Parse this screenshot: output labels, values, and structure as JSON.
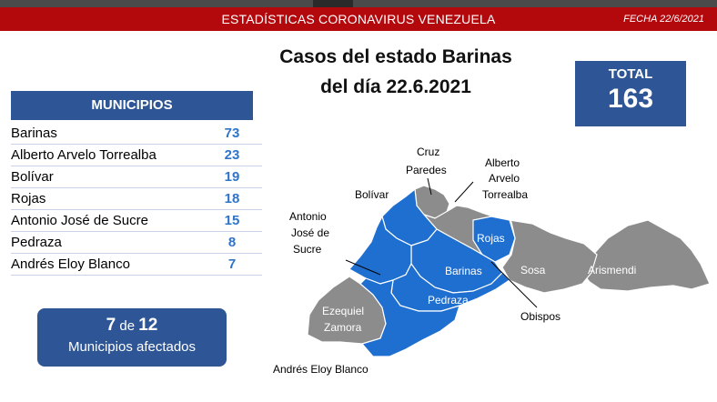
{
  "header": {
    "title": "ESTADÍSTICAS CORONAVIRUS VENEZUELA",
    "date": "FECHA 22/6/2021"
  },
  "headline": {
    "line1": "Casos del estado Barinas",
    "line2": "del día 22.6.2021"
  },
  "total": {
    "label": "TOTAL",
    "value": "163"
  },
  "municipios_table": {
    "header": "MUNICIPIOS",
    "rows": [
      {
        "name": "Barinas",
        "value": "73"
      },
      {
        "name": "Alberto Arvelo Torrealba",
        "value": "23"
      },
      {
        "name": "Bolívar",
        "value": "19"
      },
      {
        "name": "Rojas",
        "value": "18"
      },
      {
        "name": "Antonio José de Sucre",
        "value": "15"
      },
      {
        "name": "Pedraza",
        "value": "8"
      },
      {
        "name": "Andrés Eloy Blanco",
        "value": "7"
      }
    ]
  },
  "affected": {
    "count": "7",
    "of": "de",
    "total": "12",
    "label": "Municipios afectados"
  },
  "map": {
    "affected_color": "#1f6fd1",
    "unaffected_color": "#8c8c8c",
    "labels": {
      "cruz_paredes_1": "Cruz",
      "cruz_paredes_2": "Paredes",
      "aat_1": "Alberto",
      "aat_2": "Arvelo",
      "aat_3": "Torrealba",
      "bolivar": "Bolívar",
      "sucre_1": "Antonio",
      "sucre_2": "José de",
      "sucre_3": "Sucre",
      "rojas": "Rojas",
      "barinas": "Barinas",
      "sosa": "Sosa",
      "arismendi": "Arismendi",
      "pedraza": "Pedraza",
      "obispos": "Obispos",
      "ezequiel_1": "Ezequiel",
      "ezequiel_2": "Zamora",
      "aeb": "Andrés Eloy Blanco"
    }
  }
}
